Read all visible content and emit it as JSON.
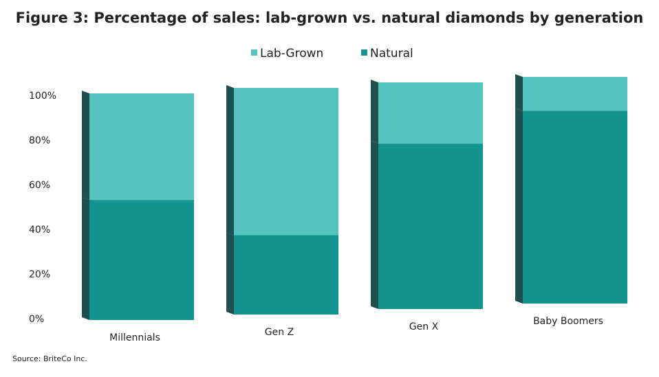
{
  "chart_data": {
    "type": "stacked-bar",
    "title": "Figure 3: Percentage of sales: lab-grown vs. natural diamonds by generation",
    "categories": [
      "Millennials",
      "Gen Z",
      "Gen X",
      "Baby Boomers"
    ],
    "series": [
      {
        "name": "Lab-Grown",
        "color": "#55c4c0",
        "values": [
          47,
          65,
          27,
          15
        ]
      },
      {
        "name": "Natural",
        "color": "#139491",
        "values": [
          53,
          35,
          73,
          85
        ]
      }
    ],
    "ylim": [
      0,
      100
    ],
    "yticks": [
      {
        "value": 0,
        "label": "0%"
      },
      {
        "value": 20,
        "label": "20%"
      },
      {
        "value": 40,
        "label": "40%"
      },
      {
        "value": 60,
        "label": "60%"
      },
      {
        "value": 80,
        "label": "80%"
      },
      {
        "value": 100,
        "label": "100%"
      }
    ],
    "source": "Source: BriteCo Inc."
  }
}
